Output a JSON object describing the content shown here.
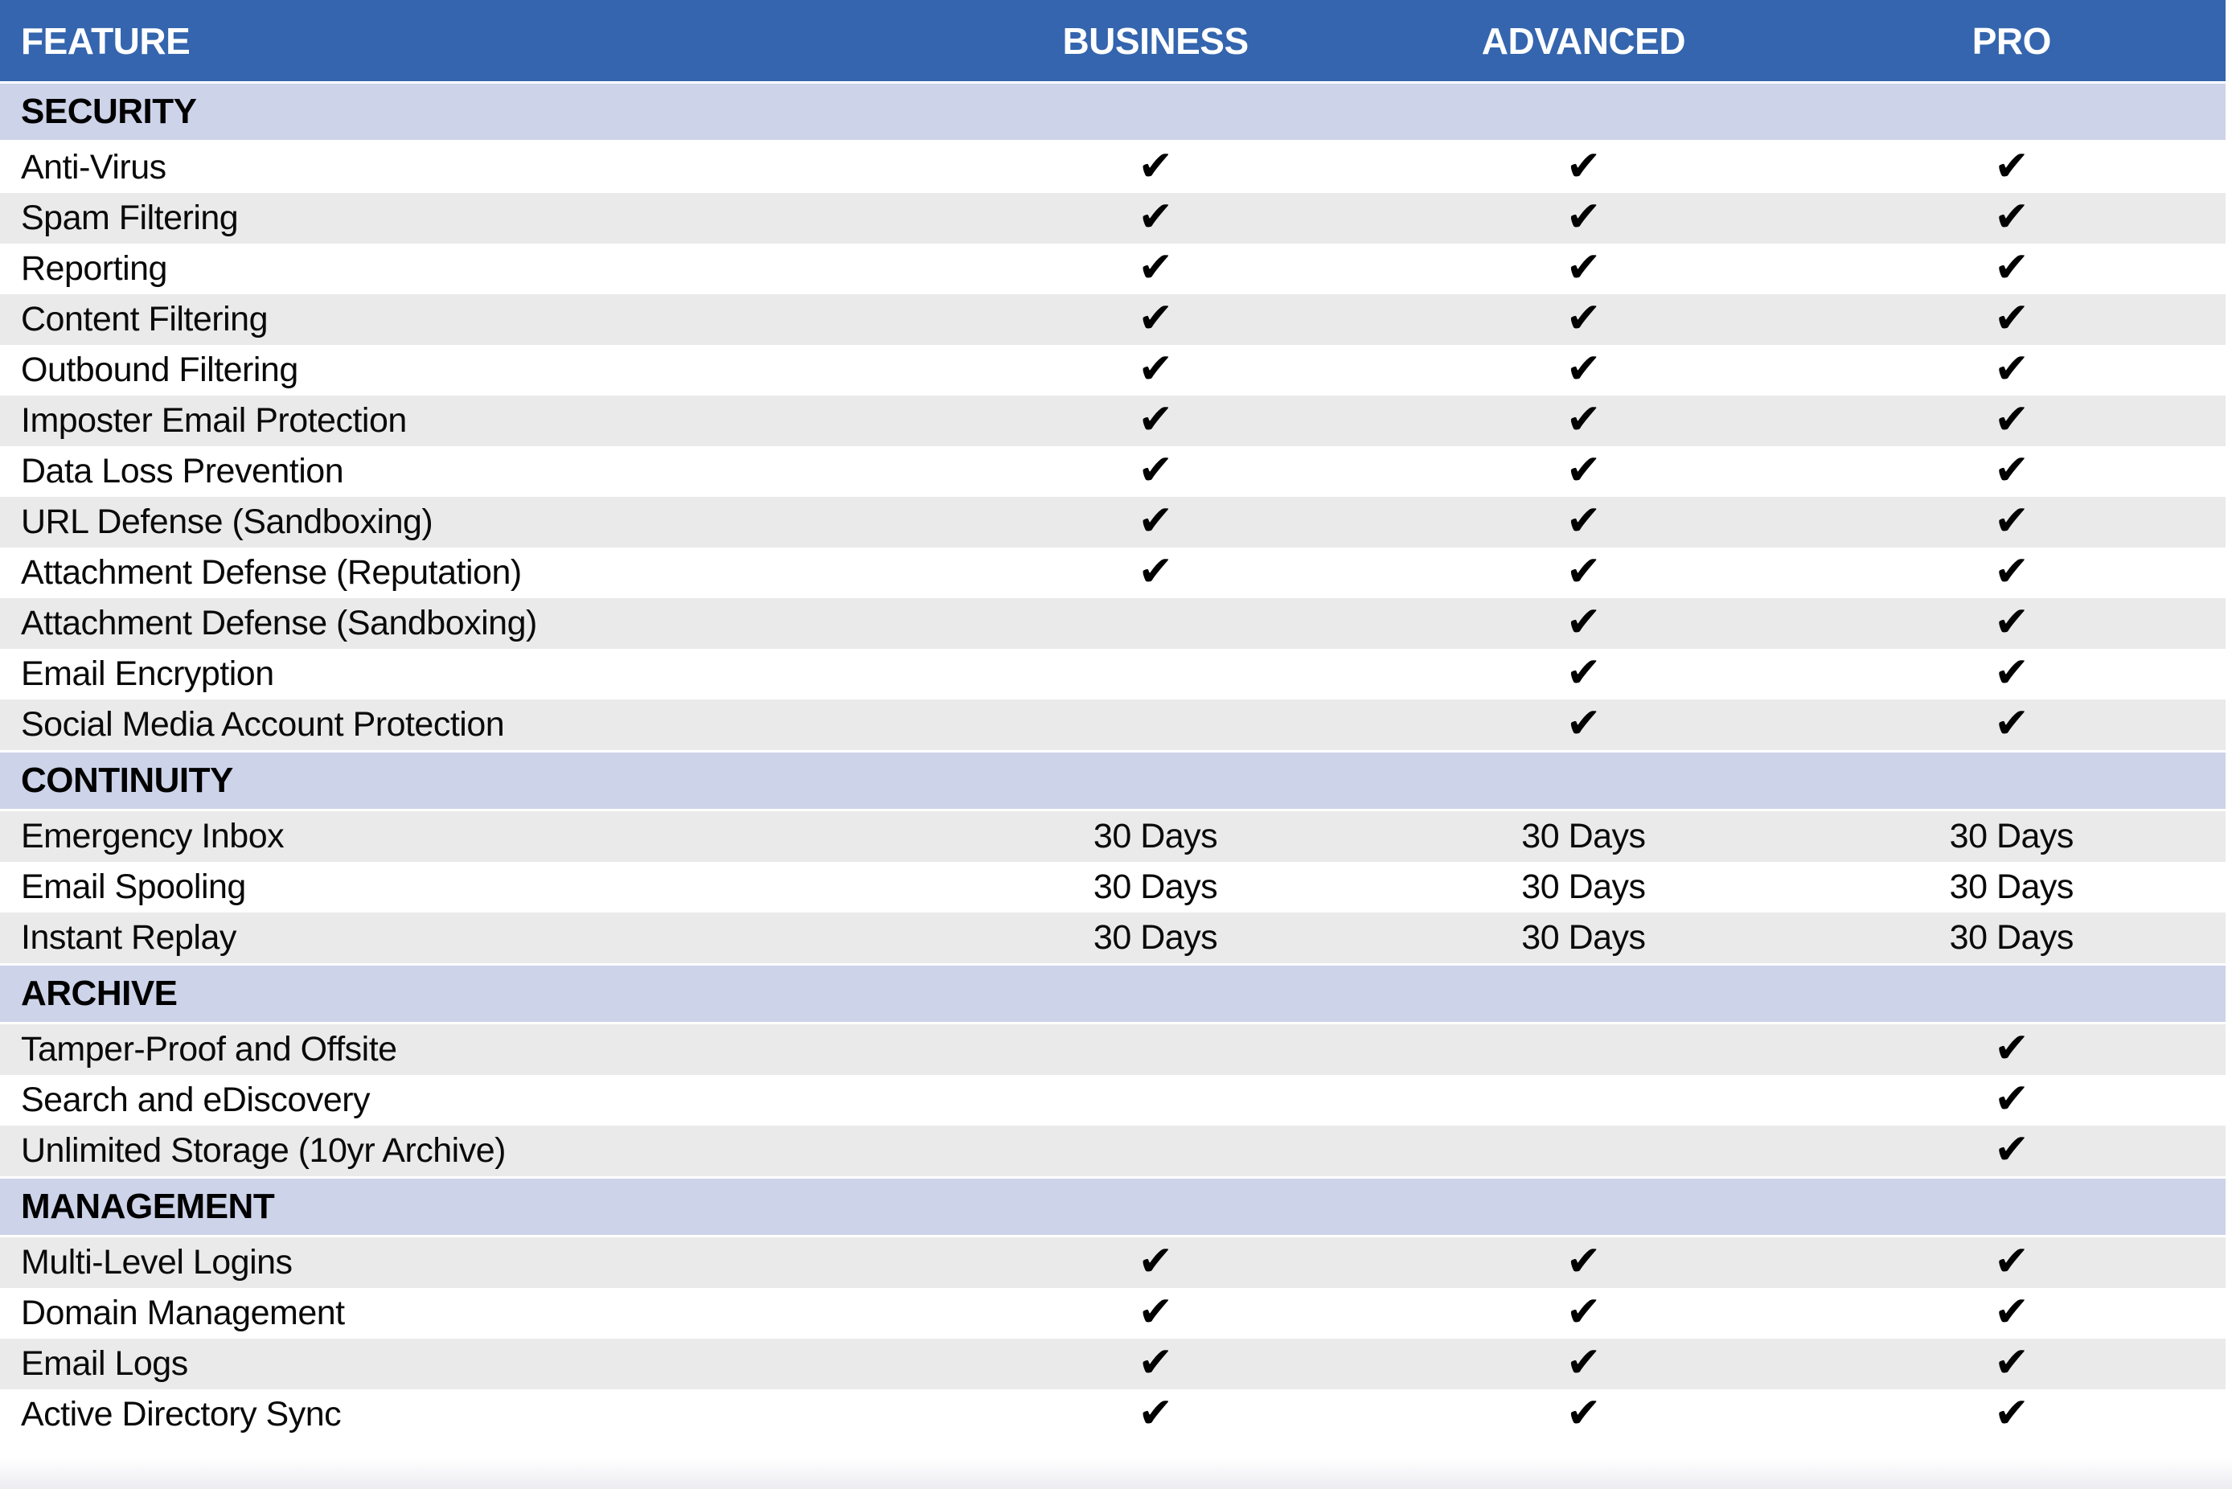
{
  "table": {
    "columns": [
      "FEATURE",
      "BUSINESS",
      "ADVANCED",
      "PRO"
    ],
    "check_symbol": "✔",
    "colors": {
      "header_bg": "#3465AE",
      "header_text": "#FFFFFF",
      "section_bg": "#CDD3E8",
      "row_bg": "#FFFFFF",
      "row_shaded_bg": "#EAEAEA",
      "text": "#0A0A0A",
      "check": "#000000"
    },
    "sections": [
      {
        "name": "SECURITY",
        "rows": [
          {
            "feature": "Anti-Virus",
            "values": [
              "check",
              "check",
              "check"
            ]
          },
          {
            "feature": "Spam Filtering",
            "values": [
              "check",
              "check",
              "check"
            ]
          },
          {
            "feature": "Reporting",
            "values": [
              "check",
              "check",
              "check"
            ]
          },
          {
            "feature": "Content Filtering",
            "values": [
              "check",
              "check",
              "check"
            ]
          },
          {
            "feature": "Outbound Filtering",
            "values": [
              "check",
              "check",
              "check"
            ]
          },
          {
            "feature": "Imposter Email Protection",
            "values": [
              "check",
              "check",
              "check"
            ]
          },
          {
            "feature": "Data Loss Prevention",
            "values": [
              "check",
              "check",
              "check"
            ]
          },
          {
            "feature": "URL Defense (Sandboxing)",
            "values": [
              "check",
              "check",
              "check"
            ]
          },
          {
            "feature": "Attachment Defense (Reputation)",
            "values": [
              "check",
              "check",
              "check"
            ]
          },
          {
            "feature": "Attachment Defense (Sandboxing)",
            "values": [
              "",
              "check",
              "check"
            ]
          },
          {
            "feature": "Email Encryption",
            "values": [
              "",
              "check",
              "check"
            ]
          },
          {
            "feature": "Social Media Account Protection",
            "values": [
              "",
              "check",
              "check"
            ]
          }
        ]
      },
      {
        "name": "CONTINUITY",
        "rows": [
          {
            "feature": "Emergency Inbox",
            "values": [
              "30 Days",
              "30 Days",
              "30 Days"
            ]
          },
          {
            "feature": "Email Spooling",
            "values": [
              "30 Days",
              "30 Days",
              "30 Days"
            ]
          },
          {
            "feature": "Instant Replay",
            "values": [
              "30 Days",
              "30 Days",
              "30 Days"
            ]
          }
        ]
      },
      {
        "name": "ARCHIVE",
        "rows": [
          {
            "feature": "Tamper-Proof and Offsite",
            "values": [
              "",
              "",
              "check"
            ]
          },
          {
            "feature": "Search and eDiscovery",
            "values": [
              "",
              "",
              "check"
            ]
          },
          {
            "feature": "Unlimited Storage (10yr Archive)",
            "values": [
              "",
              "",
              "check"
            ]
          }
        ]
      },
      {
        "name": "MANAGEMENT",
        "rows": [
          {
            "feature": "Multi-Level Logins",
            "values": [
              "check",
              "check",
              "check"
            ]
          },
          {
            "feature": "Domain Management",
            "values": [
              "check",
              "check",
              "check"
            ]
          },
          {
            "feature": "Email Logs",
            "values": [
              "check",
              "check",
              "check"
            ]
          },
          {
            "feature": "Active Directory Sync",
            "values": [
              "check",
              "check",
              "check"
            ]
          }
        ]
      }
    ]
  }
}
